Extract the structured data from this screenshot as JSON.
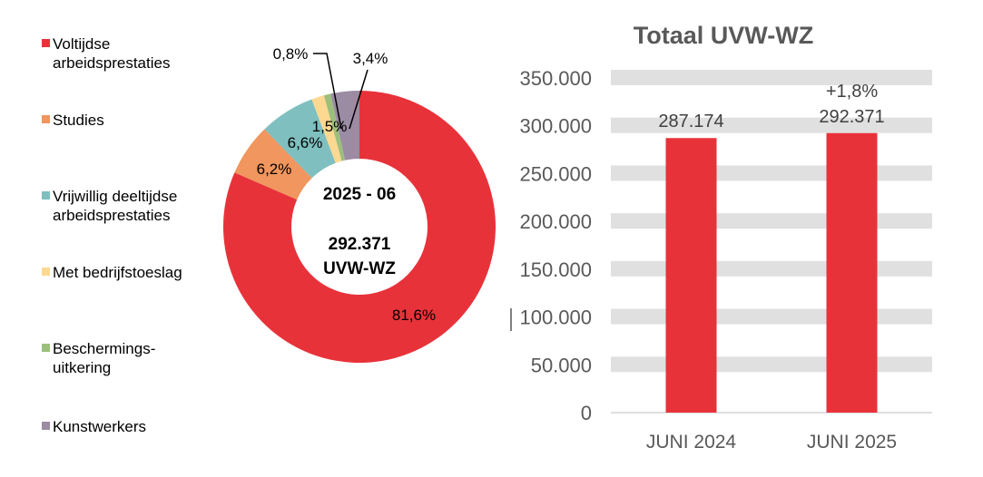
{
  "chart_data": [
    {
      "type": "pie",
      "donut": true,
      "center_label": {
        "period": "2025 - 06",
        "total": "292.371",
        "unit": "UVW-WZ"
      },
      "slices": [
        {
          "name": "Voltijdse arbeidsprestaties",
          "value": 81.6,
          "label": "81,6%",
          "color": "#E8323A"
        },
        {
          "name": "Studies",
          "value": 6.2,
          "label": "6,2%",
          "color": "#F0965E"
        },
        {
          "name": "Vrijwillig deeltijdse arbeidsprestaties",
          "value": 6.6,
          "label": "6,6%",
          "color": "#7FBFBF"
        },
        {
          "name": "Met bedrijfstoeslag",
          "value": 1.5,
          "label": "1,5%",
          "color": "#FDD891"
        },
        {
          "name": "Beschermings-uitkering",
          "value": 0.8,
          "label": "0,8%",
          "color": "#9CBF7C"
        },
        {
          "name": "Kunstwerkers",
          "value": 3.4,
          "label": "3,4%",
          "color": "#9B8BA3"
        }
      ],
      "legend_placement": "left",
      "legend": [
        [
          "Voltijdse",
          "arbeidsprestaties"
        ],
        [
          "Studies"
        ],
        [
          "Vrijwillig deeltijdse",
          "arbeidsprestaties"
        ],
        [
          "Met bedrijfstoeslag"
        ],
        [
          "Beschermings-",
          "uitkering"
        ],
        [
          "Kunstwerkers"
        ]
      ]
    },
    {
      "type": "bar",
      "title": "Totaal UVW-WZ",
      "categories": [
        "JUNI 2024",
        "JUNI 2025"
      ],
      "values": [
        287174,
        292371
      ],
      "data_labels": [
        "287.174",
        "292.371"
      ],
      "annotation": "+1,8%",
      "ylim": [
        0,
        350000
      ],
      "yticks": [
        "0",
        "50.000",
        "100.000",
        "150.000",
        "200.000",
        "250.000",
        "300.000",
        "350.000"
      ],
      "grid": true,
      "bar_color": "#E8323A",
      "grid_color": "#E0E0E0"
    }
  ]
}
